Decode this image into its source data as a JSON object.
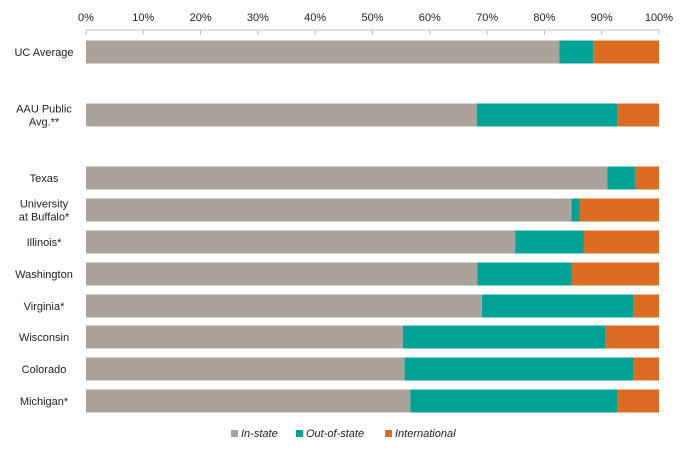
{
  "chart_data": {
    "type": "bar",
    "orientation": "horizontal",
    "stacked": true,
    "title": "",
    "xlabel": "",
    "ylabel": "",
    "xlim": [
      0,
      100
    ],
    "x_ticks": [
      "0%",
      "10%",
      "20%",
      "30%",
      "40%",
      "50%",
      "60%",
      "70%",
      "80%",
      "90%",
      "100%"
    ],
    "x_axis_position": "top",
    "grid": false,
    "legend_position": "bottom",
    "categories": [
      [
        "UC Average"
      ],
      [
        "AAU Public",
        "Avg.**"
      ],
      [
        "Texas"
      ],
      [
        "University",
        "at Buffalo*"
      ],
      [
        "Illinois*"
      ],
      [
        "Washington"
      ],
      [
        "Virginia*"
      ],
      [
        "Wisconsin"
      ],
      [
        "Colorado"
      ],
      [
        "Michigan*"
      ]
    ],
    "series": [
      {
        "name": "In-state",
        "color": "#aba39a",
        "values": [
          82.6,
          68.2,
          91.0,
          84.7,
          74.9,
          68.3,
          69.1,
          55.3,
          55.6,
          56.6
        ]
      },
      {
        "name": "Out-of-state",
        "color": "#00a396",
        "values": [
          5.9,
          24.6,
          4.8,
          1.5,
          12.0,
          16.5,
          26.5,
          35.4,
          40.0,
          36.2
        ]
      },
      {
        "name": "International",
        "color": "#dc6b23",
        "values": [
          11.5,
          7.2,
          4.2,
          13.8,
          13.1,
          15.2,
          4.4,
          9.3,
          4.4,
          7.2
        ]
      }
    ]
  }
}
